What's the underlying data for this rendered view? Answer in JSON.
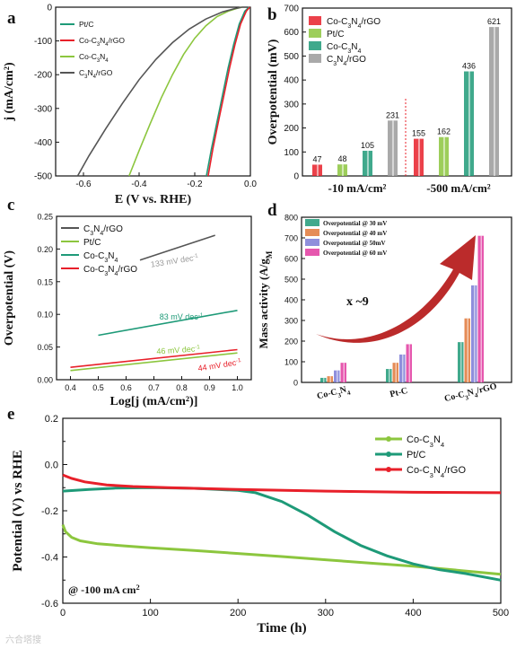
{
  "panels": {
    "a": "a",
    "b": "b",
    "c": "c",
    "d": "d",
    "e": "e"
  },
  "watermark": "六合塔搜",
  "colors": {
    "grey": "#555555",
    "red": "#e8202a",
    "green": "#8cc63e",
    "teal": "#1e9a78",
    "bgrey": "#9a9a9a",
    "blue": "#7b7bd6",
    "orange": "#e0783a",
    "pink": "#e23aa0",
    "darkred": "#b41414"
  },
  "chart_data": [
    {
      "panel": "a",
      "type": "line",
      "xlabel": "E  (V vs. RHE)",
      "ylabel": "j (mA/cm²)",
      "xlim": [
        -0.7,
        0.0
      ],
      "ylim": [
        -500,
        0
      ],
      "xticks": [
        "-0.6",
        "-0.4",
        "-0.2",
        "0.0"
      ],
      "yticks": [
        "0",
        "-100",
        "-200",
        "-300",
        "-400",
        "-500"
      ],
      "legend": "top-left",
      "series": [
        {
          "name": "Pt/C",
          "color": "#1e9a78",
          "x": [
            -0.158,
            -0.14,
            -0.12,
            -0.1,
            -0.08,
            -0.06,
            -0.04,
            -0.02,
            -0.005
          ],
          "y": [
            -500,
            -420,
            -340,
            -260,
            -180,
            -110,
            -50,
            -12,
            0
          ]
        },
        {
          "name": "Co-C₃N₄/rGO",
          "color": "#e8202a",
          "x": [
            -0.152,
            -0.135,
            -0.115,
            -0.095,
            -0.075,
            -0.055,
            -0.035,
            -0.015,
            -0.002
          ],
          "y": [
            -500,
            -420,
            -340,
            -260,
            -180,
            -110,
            -50,
            -12,
            0
          ]
        },
        {
          "name": "Co-C₃N₄",
          "color": "#8cc63e",
          "x": [
            -0.436,
            -0.4,
            -0.36,
            -0.32,
            -0.28,
            -0.24,
            -0.2,
            -0.16,
            -0.12,
            -0.08,
            -0.05,
            -0.03
          ],
          "y": [
            -500,
            -425,
            -345,
            -268,
            -200,
            -140,
            -92,
            -55,
            -28,
            -12,
            -4,
            0
          ]
        },
        {
          "name": "C₃N₄/rGO",
          "color": "#555555",
          "x": [
            -0.621,
            -0.58,
            -0.52,
            -0.46,
            -0.4,
            -0.34,
            -0.28,
            -0.22,
            -0.16,
            -0.1,
            -0.06,
            -0.03
          ],
          "y": [
            -500,
            -440,
            -360,
            -285,
            -215,
            -155,
            -105,
            -65,
            -35,
            -14,
            -5,
            0
          ]
        }
      ]
    },
    {
      "panel": "b",
      "type": "bar",
      "ylabel": "Overpotential (mV)",
      "ylim": [
        0,
        700
      ],
      "yticks": [
        "0",
        "100",
        "200",
        "300",
        "400",
        "500",
        "600",
        "700"
      ],
      "categories": [
        "-10 mA/cm²",
        "-500 mA/cm²"
      ],
      "legend": "top-left",
      "series": [
        {
          "name": "Co-C₃N₄/rGO",
          "color": "#e8202a",
          "values": [
            47,
            155
          ]
        },
        {
          "name": "Pt/C",
          "color": "#8cc63e",
          "values": [
            48,
            162
          ]
        },
        {
          "name": "Co-C₃N₄",
          "color": "#1e9a78",
          "values": [
            105,
            436
          ]
        },
        {
          "name": "C₃N₄/rGO",
          "color": "#9a9a9a",
          "values": [
            231,
            621
          ]
        }
      ]
    },
    {
      "panel": "c",
      "type": "line",
      "xlabel": "Log[j (mA/cm²)]",
      "ylabel": "Overpotential (V)",
      "xlim": [
        0.35,
        1.05
      ],
      "ylim": [
        0.0,
        0.25
      ],
      "xticks": [
        "0.4",
        "0.5",
        "0.6",
        "0.7",
        "0.8",
        "0.9",
        "1.0"
      ],
      "yticks": [
        "0.00",
        "0.05",
        "0.10",
        "0.15",
        "0.20",
        "0.25"
      ],
      "legend": "top-left",
      "series": [
        {
          "name": "C₃N₄/rGO",
          "color": "#555555",
          "x": [
            0.65,
            0.92
          ],
          "y": [
            0.183,
            0.221
          ]
        },
        {
          "name": "Pt/C",
          "color": "#8cc63e",
          "x": [
            0.4,
            1.0
          ],
          "y": [
            0.014,
            0.041
          ]
        },
        {
          "name": "Co-C₃N₄",
          "color": "#1e9a78",
          "x": [
            0.5,
            1.0
          ],
          "y": [
            0.068,
            0.106
          ]
        },
        {
          "name": "Co-C₃N₄/rGO",
          "color": "#e8202a",
          "x": [
            0.4,
            1.0
          ],
          "y": [
            0.019,
            0.046
          ]
        }
      ],
      "annotations": [
        {
          "text": "133 mV dec",
          "sup": "-1",
          "color": "#9a9a9a",
          "x": 0.69,
          "y": 0.172,
          "rot": -9
        },
        {
          "text": "83 mV dec",
          "sup": "-1",
          "color": "#1e9a78",
          "x": 0.72,
          "y": 0.092,
          "rot": 0
        },
        {
          "text": "46 mV dec",
          "sup": "-1",
          "color": "#8cc63e",
          "x": 0.71,
          "y": 0.039,
          "rot": -4
        },
        {
          "text": "44 mV dec",
          "sup": "-1",
          "color": "#e8202a",
          "x": 0.86,
          "y": 0.013,
          "rot": -9
        }
      ]
    },
    {
      "panel": "d",
      "type": "bar",
      "ylabel": "Mass activity (A/g",
      "ylabel_sub": "M",
      "ylim": [
        0,
        800
      ],
      "yticks": [
        "0",
        "100",
        "200",
        "300",
        "400",
        "500",
        "600",
        "700",
        "800"
      ],
      "categories": [
        "Co-C₃N₄",
        "Pt-C",
        "Co-C₃N₄/rGO"
      ],
      "legend": "top-left",
      "series": [
        {
          "name": "Overpotential @ 30 mV",
          "color": "#1e9a78",
          "values": [
            22,
            65,
            195
          ]
        },
        {
          "name": "Overpotential @ 40 mV",
          "color": "#e0783a",
          "values": [
            30,
            95,
            310
          ]
        },
        {
          "name": "Overpotential @ 50mV",
          "color": "#7b7bd6",
          "values": [
            58,
            135,
            470
          ]
        },
        {
          "name": "Overpotential @ 60 mV",
          "color": "#e23aa0",
          "values": [
            95,
            185,
            710
          ]
        }
      ],
      "annotation": "x ~9"
    },
    {
      "panel": "e",
      "type": "line",
      "xlabel": "Time (h)",
      "ylabel": "Potential (V) vs RHE",
      "xlim": [
        0,
        500
      ],
      "ylim": [
        -0.6,
        0.2
      ],
      "xticks": [
        "0",
        "100",
        "200",
        "300",
        "400",
        "500"
      ],
      "yticks": [
        "0.2",
        "0.0",
        "-0.2",
        "-0.4",
        "-0.6"
      ],
      "legend": "top-right",
      "annotation": "@ -100 mA cm",
      "annotation_sup": "2",
      "series": [
        {
          "name": "Co-C₃N₄",
          "color": "#8cc63e",
          "x": [
            0,
            3,
            10,
            20,
            40,
            70,
            100,
            150,
            200,
            250,
            300,
            350,
            400,
            450,
            500
          ],
          "y": [
            -0.26,
            -0.29,
            -0.315,
            -0.33,
            -0.343,
            -0.352,
            -0.36,
            -0.372,
            -0.385,
            -0.398,
            -0.412,
            -0.426,
            -0.44,
            -0.457,
            -0.475
          ]
        },
        {
          "name": "Pt/C",
          "color": "#1e9a78",
          "x": [
            0,
            30,
            60,
            100,
            150,
            200,
            220,
            250,
            280,
            310,
            340,
            370,
            400,
            430,
            460,
            500
          ],
          "y": [
            -0.115,
            -0.108,
            -0.102,
            -0.1,
            -0.103,
            -0.112,
            -0.122,
            -0.16,
            -0.22,
            -0.29,
            -0.35,
            -0.395,
            -0.43,
            -0.455,
            -0.472,
            -0.5
          ]
        },
        {
          "name": "Co-C₃N₄/rGO",
          "color": "#e8202a",
          "x": [
            0,
            10,
            25,
            50,
            80,
            120,
            200,
            300,
            400,
            500
          ],
          "y": [
            -0.045,
            -0.06,
            -0.075,
            -0.088,
            -0.095,
            -0.1,
            -0.108,
            -0.115,
            -0.12,
            -0.122
          ]
        }
      ]
    }
  ]
}
